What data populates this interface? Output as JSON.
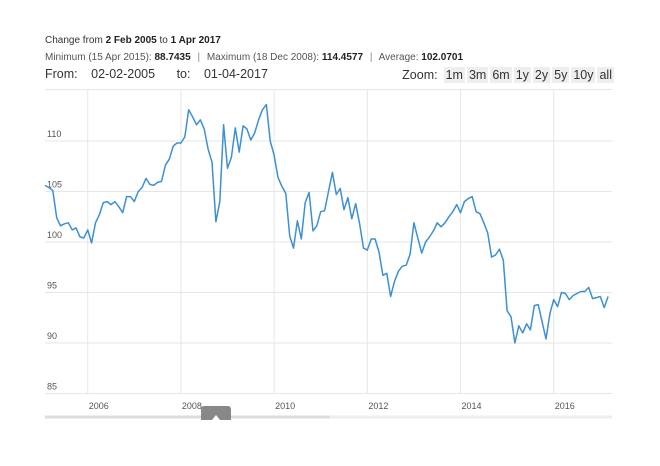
{
  "header": {
    "change_prefix": "Change from",
    "change_from": "2 Feb 2005",
    "change_to_word": "to",
    "change_to": "1 Apr 2017",
    "min_label": "Minimum (15 Apr 2015):",
    "min_value": "88.7435",
    "max_label": "Maximum (18 Dec 2008):",
    "max_value": "114.4577",
    "avg_label": "Average:",
    "avg_value": "102.0701",
    "separator": "|"
  },
  "range": {
    "from_label": "From:",
    "from_value": "02-02-2005",
    "to_label": "to:",
    "to_value": "01-04-2017"
  },
  "zoom": {
    "label": "Zoom:",
    "buttons": [
      "1m",
      "3m",
      "6m",
      "1y",
      "2y",
      "5y",
      "10y",
      "all"
    ]
  },
  "colors": {
    "line": "#3d8fd6",
    "grid": "#e6e6e6",
    "handle": "#888888"
  },
  "chart_data": {
    "type": "line",
    "xlim": [
      "2005-02",
      "2017-04"
    ],
    "ylim": [
      85,
      114
    ],
    "grid": true,
    "x_tick_labels": [
      "2006",
      "2008",
      "2010",
      "2012",
      "2014",
      "2016"
    ],
    "y_tick_labels": [
      "85",
      "90",
      "95",
      "100",
      "105",
      "110"
    ],
    "series": [
      {
        "x": [
          "2005-02",
          "2005-03",
          "2005-04",
          "2005-05",
          "2005-06",
          "2005-07",
          "2005-08",
          "2005-09",
          "2005-10",
          "2005-11",
          "2005-12",
          "2006-01",
          "2006-02",
          "2006-03",
          "2006-04",
          "2006-05",
          "2006-06",
          "2006-07",
          "2006-08",
          "2006-09",
          "2006-10",
          "2006-11",
          "2006-12",
          "2007-01",
          "2007-02",
          "2007-03",
          "2007-04",
          "2007-05",
          "2007-06",
          "2007-07",
          "2007-08",
          "2007-09",
          "2007-10",
          "2007-11",
          "2007-12",
          "2008-01",
          "2008-02",
          "2008-03",
          "2008-04",
          "2008-05",
          "2008-06",
          "2008-07",
          "2008-08",
          "2008-09",
          "2008-10",
          "2008-11",
          "2008-12",
          "2009-01",
          "2009-02",
          "2009-03",
          "2009-04",
          "2009-05",
          "2009-06",
          "2009-07",
          "2009-08",
          "2009-09",
          "2009-10",
          "2009-11",
          "2009-12",
          "2010-01",
          "2010-02",
          "2010-03",
          "2010-04",
          "2010-05",
          "2010-06",
          "2010-07",
          "2010-08",
          "2010-09",
          "2010-10",
          "2010-11",
          "2010-12",
          "2011-01",
          "2011-02",
          "2011-03",
          "2011-04",
          "2011-05",
          "2011-06",
          "2011-07",
          "2011-08",
          "2011-09",
          "2011-10",
          "2011-11",
          "2011-12",
          "2012-01",
          "2012-02",
          "2012-03",
          "2012-04",
          "2012-05",
          "2012-06",
          "2012-07",
          "2012-08",
          "2012-09",
          "2012-10",
          "2012-11",
          "2012-12",
          "2013-01",
          "2013-02",
          "2013-03",
          "2013-04",
          "2013-05",
          "2013-06",
          "2013-07",
          "2013-08",
          "2013-09",
          "2013-10",
          "2013-11",
          "2013-12",
          "2014-01",
          "2014-02",
          "2014-03",
          "2014-04",
          "2014-05",
          "2014-06",
          "2014-07",
          "2014-08",
          "2014-09",
          "2014-10",
          "2014-11",
          "2014-12",
          "2015-01",
          "2015-02",
          "2015-03",
          "2015-04",
          "2015-05",
          "2015-06",
          "2015-07",
          "2015-08",
          "2015-09",
          "2015-10",
          "2015-11",
          "2015-12",
          "2016-01",
          "2016-02",
          "2016-03",
          "2016-04",
          "2016-05",
          "2016-06",
          "2016-07",
          "2016-08",
          "2016-09",
          "2016-10",
          "2016-11",
          "2016-12",
          "2017-01",
          "2017-02",
          "2017-03"
        ],
        "y": [
          105.6,
          105.4,
          105.1,
          102.4,
          101.6,
          101.8,
          101.9,
          101.2,
          101.4,
          100.5,
          100.4,
          101.2,
          99.9,
          101.9,
          102.7,
          103.9,
          104.0,
          103.7,
          104.0,
          103.5,
          102.9,
          104.5,
          104.5,
          104.0,
          105.0,
          105.4,
          106.3,
          105.7,
          105.6,
          105.9,
          106.0,
          107.6,
          108.2,
          109.5,
          109.8,
          109.8,
          110.4,
          113.1,
          112.4,
          111.6,
          112.1,
          111.2,
          109.2,
          107.9,
          102.0,
          104.0,
          111.6,
          107.3,
          108.4,
          111.3,
          108.9,
          111.5,
          111.2,
          110.1,
          110.8,
          112.1,
          113.1,
          113.6,
          110.0,
          108.6,
          106.4,
          105.5,
          104.8,
          100.6,
          99.4,
          102.1,
          100.3,
          103.9,
          104.9,
          101.1,
          101.6,
          103.0,
          103.1,
          105.0,
          106.9,
          104.7,
          105.3,
          103.2,
          104.4,
          102.3,
          103.8,
          101.8,
          99.4,
          99.2,
          100.3,
          100.3,
          99.0,
          96.7,
          96.9,
          94.6,
          96.1,
          97.1,
          97.6,
          97.7,
          98.8,
          101.9,
          100.4,
          98.9,
          100.0,
          100.5,
          101.1,
          101.9,
          101.5,
          101.9,
          102.5,
          103.0,
          103.7,
          102.9,
          104.0,
          104.3,
          104.5,
          103.0,
          102.8,
          101.9,
          100.9,
          98.5,
          98.7,
          99.3,
          98.2,
          93.2,
          92.6,
          90.0,
          91.7,
          91.0,
          91.9,
          91.3,
          93.7,
          93.8,
          92.1,
          90.4,
          92.9,
          94.3,
          93.6,
          95.0,
          94.9,
          94.3,
          94.7,
          94.9,
          95.1,
          95.1,
          95.5,
          94.4,
          94.5,
          94.6,
          93.5,
          94.6
        ]
      }
    ]
  }
}
